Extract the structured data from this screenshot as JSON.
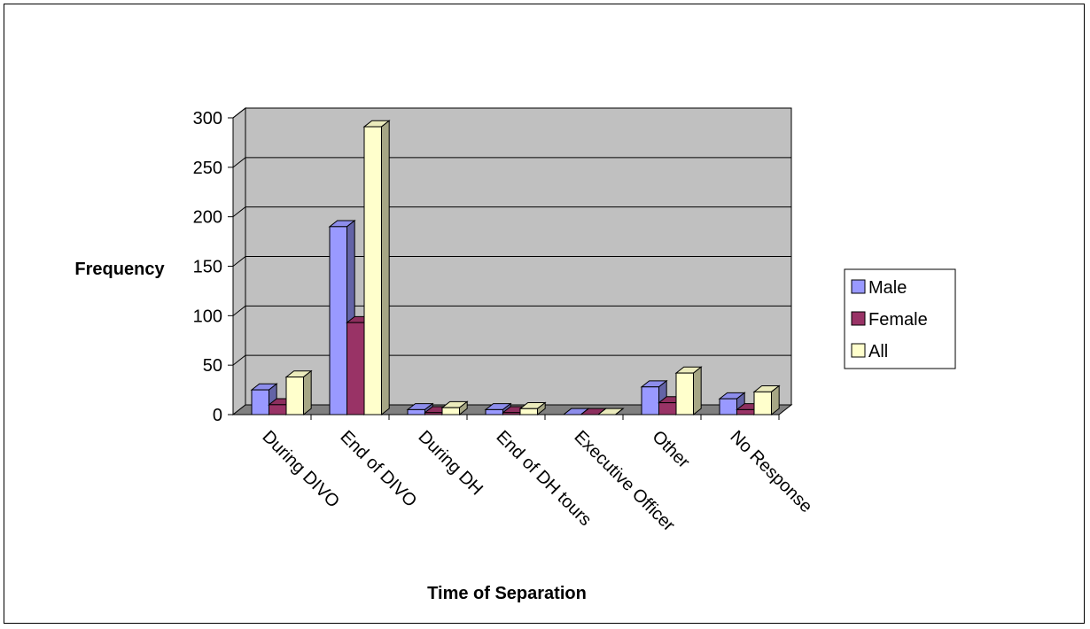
{
  "chart_data": {
    "type": "bar",
    "style": "3d-clustered-column",
    "title": "",
    "xlabel": "Time of Separation",
    "ylabel": "Frequency",
    "categories": [
      "During DIVO",
      "End of DIVO",
      "During DH",
      "End of DH tours",
      "Executive Officer",
      "Other",
      "No Response"
    ],
    "series": [
      {
        "name": "Male",
        "color": "#9999ff",
        "values": [
          25,
          190,
          5,
          5,
          0,
          28,
          16
        ]
      },
      {
        "name": "Female",
        "color": "#993366",
        "values": [
          10,
          93,
          2,
          2,
          0,
          12,
          5
        ]
      },
      {
        "name": "All",
        "color": "#ffffcc",
        "values": [
          38,
          291,
          7,
          6,
          0,
          42,
          23
        ]
      }
    ],
    "ylim": [
      0,
      300
    ],
    "yticks": [
      0,
      50,
      100,
      150,
      200,
      250,
      300
    ],
    "wall_color": "#c0c0c0",
    "floor_color": "#808080",
    "grid": true,
    "legend_position": "right"
  }
}
